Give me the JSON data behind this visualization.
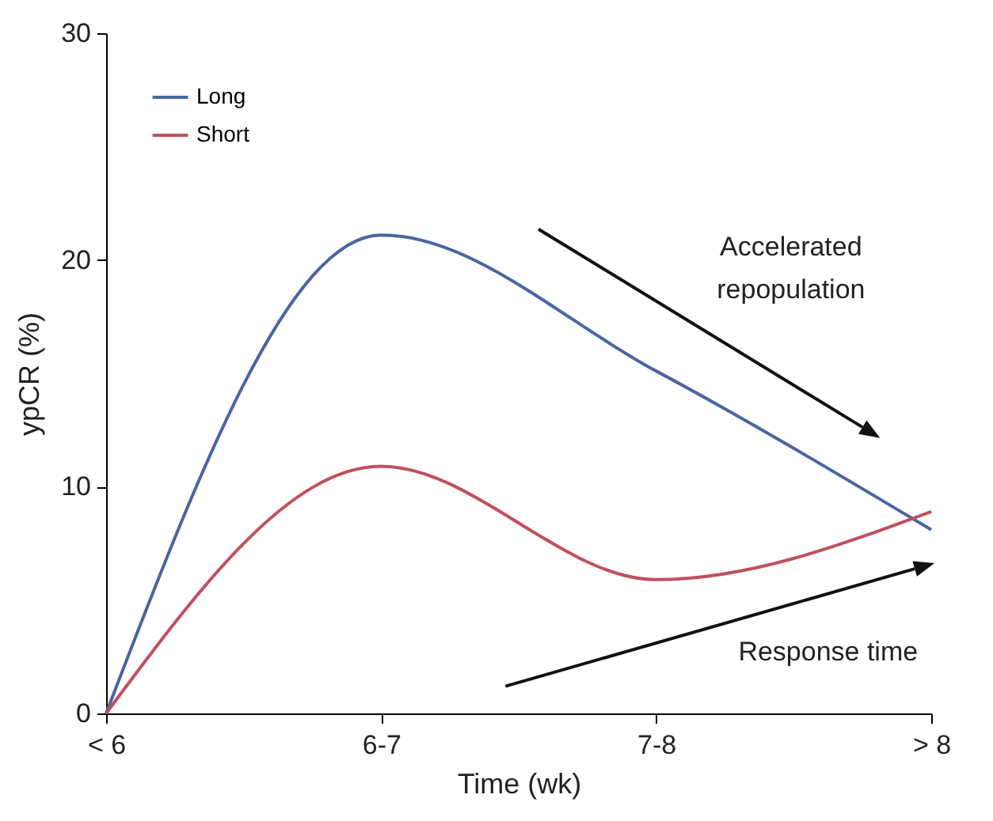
{
  "chart_data": {
    "type": "line",
    "xlabel": "Time (wk)",
    "ylabel": "ypCR (%)",
    "categories": [
      "< 6",
      "6-7",
      "7-8",
      "> 8"
    ],
    "series": [
      {
        "name": "Long",
        "color": "#4a66a0",
        "values": [
          0,
          21.1,
          15.1,
          8.1
        ]
      },
      {
        "name": "Short",
        "color": "#c0505f",
        "values": [
          0,
          10.9,
          5.9,
          8.9
        ]
      }
    ],
    "ylim": [
      0,
      30
    ],
    "yticks": [
      0,
      10,
      20,
      30
    ],
    "grid": false,
    "legend": "top left",
    "marker": "none",
    "line_style": "solid",
    "annotations": [
      "Accelerated repopulation",
      "Response time"
    ]
  }
}
